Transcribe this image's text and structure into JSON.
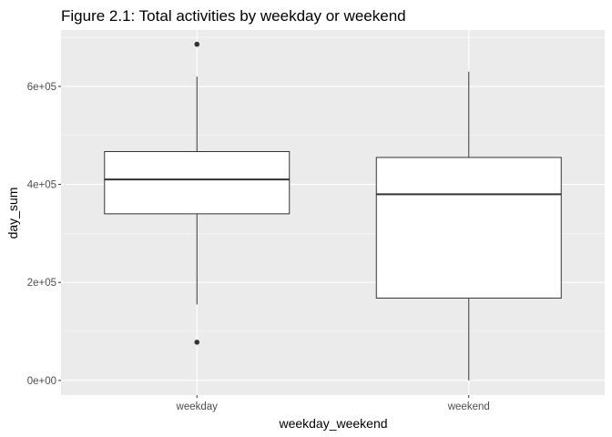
{
  "chart_data": {
    "type": "boxplot",
    "title": "Figure 2.1: Total activities by weekday or weekend",
    "xlabel": "weekday_weekend",
    "ylabel": "day_sum",
    "categories": [
      "weekday",
      "weekend"
    ],
    "ylim": [
      -30000,
      715000
    ],
    "yticks": [
      {
        "value": 0,
        "label": "0e+00"
      },
      {
        "value": 200000,
        "label": "2e+05"
      },
      {
        "value": 400000,
        "label": "4e+05"
      },
      {
        "value": 600000,
        "label": "6e+05"
      }
    ],
    "boxes": [
      {
        "category": "weekday",
        "lower_whisker": 155000,
        "q1": 340000,
        "median": 410000,
        "q3": 467000,
        "upper_whisker": 620000,
        "outliers": [
          78000,
          686000
        ]
      },
      {
        "category": "weekend",
        "lower_whisker": 0,
        "q1": 168000,
        "median": 380000,
        "q3": 455000,
        "upper_whisker": 630000,
        "outliers": []
      }
    ],
    "grid": true,
    "colors": {
      "panel": "#ebebeb",
      "grid_major": "#ffffff",
      "box_fill": "#ffffff",
      "box_stroke": "#333333",
      "outlier": "#333333"
    }
  }
}
